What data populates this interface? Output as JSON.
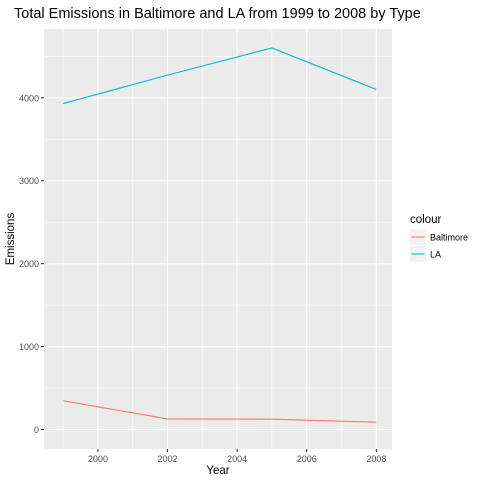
{
  "chart_data": {
    "type": "line",
    "title": "Total Emissions in Baltimore and LA from 1999 to 2008 by Type",
    "xlabel": "Year",
    "ylabel": "Emissions",
    "x": [
      1999,
      2002,
      2005,
      2008
    ],
    "xlim": [
      1998.45,
      2008.45
    ],
    "ylim": [
      -235,
      4830
    ],
    "x_ticks": [
      2000,
      2002,
      2004,
      2006,
      2008
    ],
    "x_tick_labels": [
      "2000",
      "2002",
      "2004",
      "2006",
      "2008"
    ],
    "y_ticks": [
      0,
      1000,
      2000,
      3000,
      4000
    ],
    "y_tick_labels": [
      "0",
      "1000",
      "2000",
      "3000",
      "4000"
    ],
    "grid": true,
    "legend": {
      "title": "colour",
      "position": "right"
    },
    "series": [
      {
        "name": "Baltimore",
        "color": "#F8766D",
        "values": [
          346.8,
          128.0,
          125.0,
          88.3
        ]
      },
      {
        "name": "LA",
        "color": "#00BFC4",
        "values": [
          3931.1,
          4274.0,
          4601.4,
          4101.3
        ]
      }
    ]
  },
  "colors": {
    "panel_background": "#EBEBEB",
    "grid_major": "#FFFFFF",
    "axis_text": "#4D4D4D",
    "label_text": "#000000"
  }
}
